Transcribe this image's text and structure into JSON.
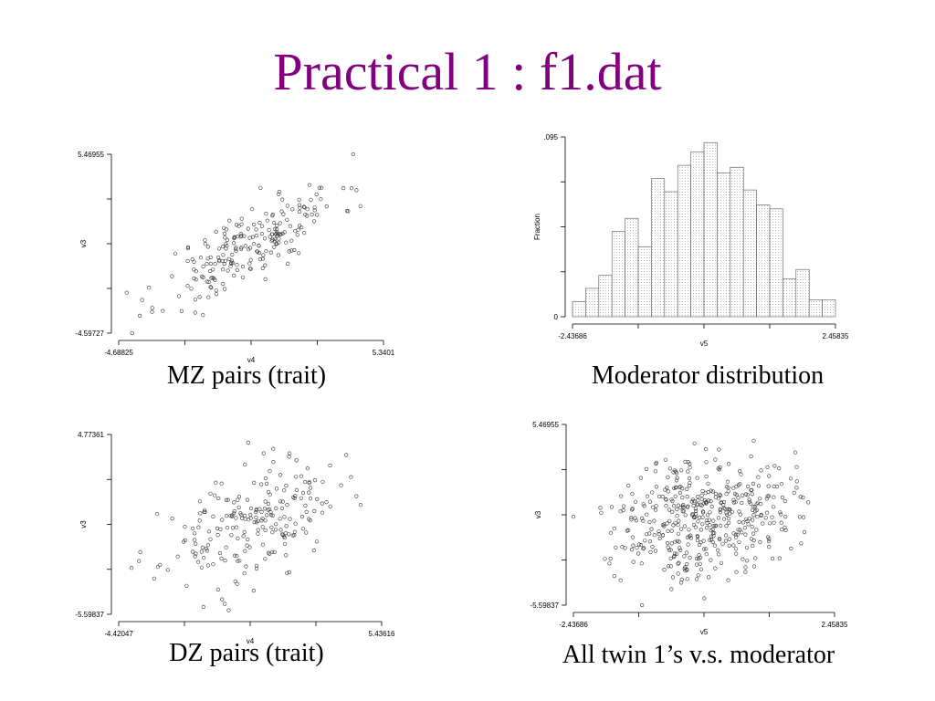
{
  "page": {
    "title": "Practical 1 : f1.dat"
  },
  "captions": [
    "MZ pairs (trait)",
    "Moderator distribution",
    "DZ pairs (trait)",
    "All twin 1’s v.s. moderator"
  ],
  "chart_data": [
    {
      "type": "scatter",
      "xlabel": "v4",
      "ylabel": "v3",
      "xlim": [
        -4.68825,
        5.3401
      ],
      "ylim": [
        -4.59727,
        5.46955
      ],
      "xtick_labels": [
        "-4.68825",
        "5.3401"
      ],
      "ytick_labels": [
        "5.46955",
        "-4.59727"
      ],
      "n_points": 220,
      "correlation": 0.78,
      "seed": 11,
      "grid": false
    },
    {
      "type": "bar",
      "xlabel": "v5",
      "ylabel": "Fraction",
      "xlim": [
        -2.43686,
        2.45835
      ],
      "ylim": [
        0,
        0.095
      ],
      "xtick_labels": [
        "-2.43686",
        "2.45835"
      ],
      "ytick_labels": [
        ".095",
        "0"
      ],
      "values": [
        0.008,
        0.015,
        0.022,
        0.045,
        0.052,
        0.037,
        0.073,
        0.066,
        0.08,
        0.087,
        0.092,
        0.076,
        0.079,
        0.067,
        0.059,
        0.057,
        0.02,
        0.025,
        0.009,
        0.009
      ],
      "grid": false
    },
    {
      "type": "scatter",
      "xlabel": "v4",
      "ylabel": "v3",
      "xlim": [
        -4.42047,
        5.43616
      ],
      "ylim": [
        -5.59837,
        4.77361
      ],
      "xtick_labels": [
        "-4.42047",
        "5.43616"
      ],
      "ytick_labels": [
        "4.77361",
        "-5.59837"
      ],
      "n_points": 220,
      "correlation": 0.45,
      "seed": 23,
      "grid": false
    },
    {
      "type": "scatter",
      "xlabel": "v5",
      "ylabel": "v3",
      "xlim": [
        -2.43686,
        2.45835
      ],
      "ylim": [
        -5.59837,
        5.46955
      ],
      "xtick_labels": [
        "-2.43686",
        "2.45835"
      ],
      "ytick_labels": [
        "5.46955",
        "-5.59837"
      ],
      "n_points": 450,
      "correlation": 0.15,
      "seed": 37,
      "grid": false
    }
  ]
}
